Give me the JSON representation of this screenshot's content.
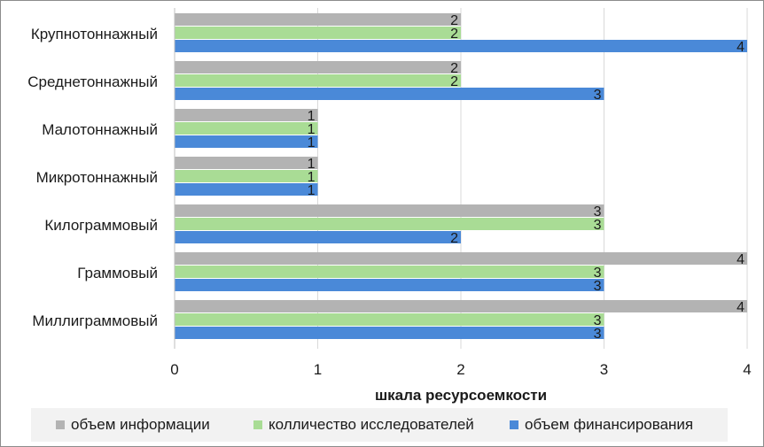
{
  "chart_data": {
    "type": "bar",
    "orientation": "horizontal",
    "title": "",
    "xlabel": "шкала ресурсоемкости",
    "ylabel": "",
    "xlim": [
      0,
      4
    ],
    "xticks": [
      "0",
      "1",
      "2",
      "3",
      "4"
    ],
    "grid": true,
    "legend_position": "bottom",
    "categories": [
      "Крупнотоннажный",
      "Среднетоннажный",
      "Малотоннажный",
      "Микротоннажный",
      "Килограммовый",
      "Граммовый",
      "Миллиграммовый"
    ],
    "series": [
      {
        "name": "объем информации",
        "color": "#b3b3b3",
        "values": [
          2,
          2,
          1,
          1,
          3,
          4,
          4
        ]
      },
      {
        "name": "колличество исследователей",
        "color": "#a9dc95",
        "values": [
          2,
          2,
          1,
          1,
          3,
          3,
          3
        ]
      },
      {
        "name": "объем финансирования",
        "color": "#4a89d8",
        "values": [
          4,
          3,
          1,
          1,
          2,
          3,
          3
        ]
      }
    ]
  }
}
